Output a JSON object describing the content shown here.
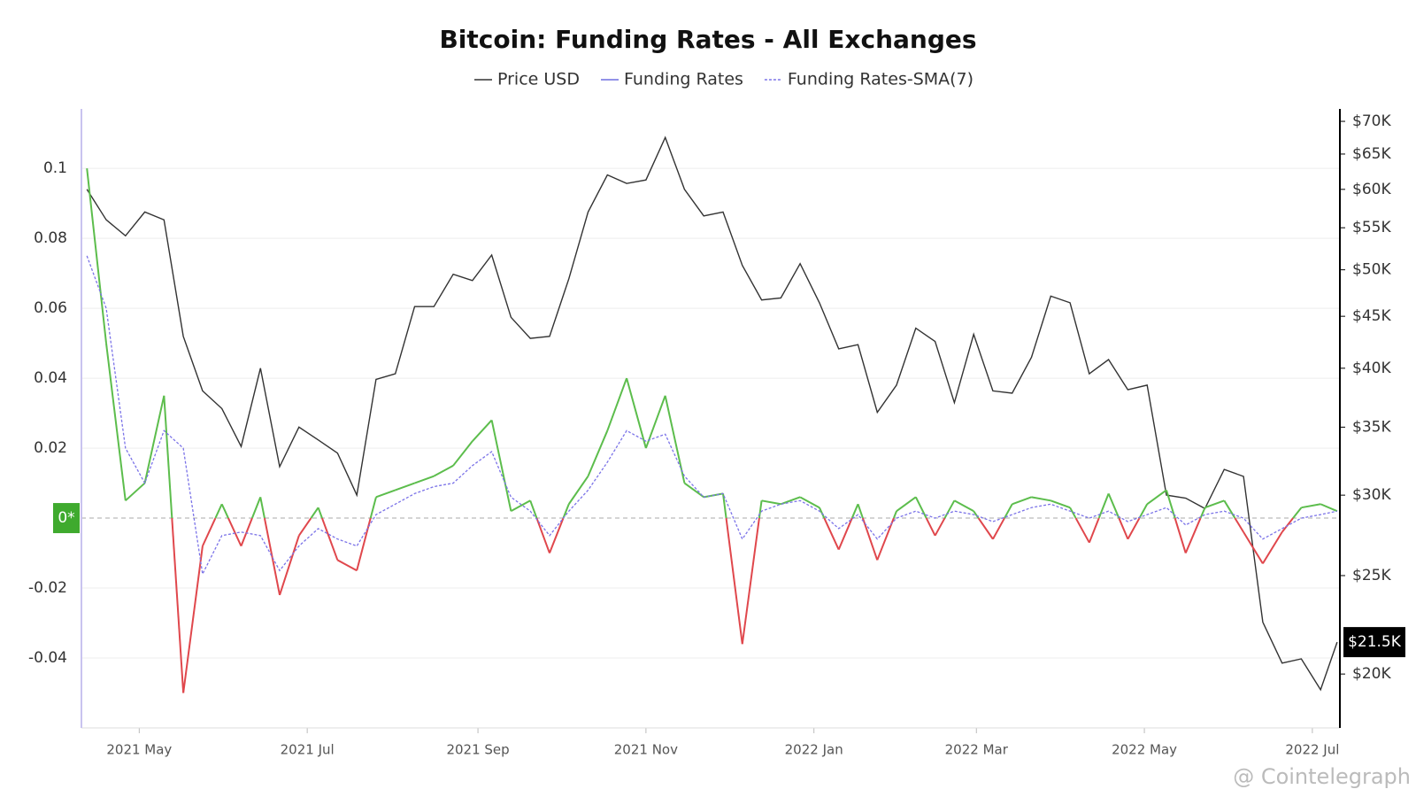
{
  "chart_data": {
    "type": "line",
    "title": "Bitcoin: Funding Rates - All Exchanges",
    "x": [
      "2021-04-12",
      "2021-04-19",
      "2021-04-26",
      "2021-05-03",
      "2021-05-10",
      "2021-05-17",
      "2021-05-24",
      "2021-05-31",
      "2021-06-07",
      "2021-06-14",
      "2021-06-21",
      "2021-06-28",
      "2021-07-05",
      "2021-07-12",
      "2021-07-19",
      "2021-07-26",
      "2021-08-02",
      "2021-08-09",
      "2021-08-16",
      "2021-08-23",
      "2021-08-30",
      "2021-09-06",
      "2021-09-13",
      "2021-09-20",
      "2021-09-27",
      "2021-10-04",
      "2021-10-11",
      "2021-10-18",
      "2021-10-25",
      "2021-11-01",
      "2021-11-08",
      "2021-11-15",
      "2021-11-22",
      "2021-11-29",
      "2021-12-06",
      "2021-12-13",
      "2021-12-20",
      "2021-12-27",
      "2022-01-03",
      "2022-01-10",
      "2022-01-17",
      "2022-01-24",
      "2022-01-31",
      "2022-02-07",
      "2022-02-14",
      "2022-02-21",
      "2022-02-28",
      "2022-03-07",
      "2022-03-14",
      "2022-03-21",
      "2022-03-28",
      "2022-04-04",
      "2022-04-11",
      "2022-04-18",
      "2022-04-25",
      "2022-05-02",
      "2022-05-09",
      "2022-05-16",
      "2022-05-23",
      "2022-05-30",
      "2022-06-06",
      "2022-06-13",
      "2022-06-20",
      "2022-06-27",
      "2022-07-04",
      "2022-07-10"
    ],
    "series": [
      {
        "name": "Price USD",
        "color": "#333333",
        "axis": "y2",
        "style": "solid",
        "values": [
          60000,
          56000,
          54000,
          57000,
          56000,
          43000,
          38000,
          36500,
          33500,
          40000,
          32000,
          35000,
          34000,
          33000,
          30000,
          39000,
          39500,
          46000,
          46000,
          49500,
          48800,
          51700,
          44900,
          42800,
          43000,
          49000,
          57000,
          62000,
          60800,
          61300,
          67500,
          60000,
          56500,
          57000,
          50500,
          46700,
          46900,
          50700,
          46400,
          41800,
          42200,
          36200,
          38500,
          43800,
          42500,
          37000,
          43200,
          38000,
          37800,
          41000,
          47100,
          46400,
          39500,
          40800,
          38100,
          38500,
          30000,
          29800,
          29100,
          31800,
          31300,
          22500,
          20500,
          20700,
          19300,
          21500
        ]
      },
      {
        "name": "Funding Rates",
        "color": "#6f6fe0",
        "positive_color": "#5cbd4c",
        "negative_color": "#e0474c",
        "style": "solid",
        "values": [
          0.1,
          0.05,
          0.005,
          0.01,
          0.035,
          -0.05,
          -0.008,
          0.004,
          -0.008,
          0.006,
          -0.022,
          -0.005,
          0.003,
          -0.012,
          -0.015,
          0.006,
          0.008,
          0.01,
          0.012,
          0.015,
          0.022,
          0.028,
          0.002,
          0.005,
          -0.01,
          0.004,
          0.012,
          0.025,
          0.04,
          0.02,
          0.035,
          0.01,
          0.006,
          0.007,
          -0.036,
          0.005,
          0.004,
          0.006,
          0.003,
          -0.009,
          0.004,
          -0.012,
          0.002,
          0.006,
          -0.005,
          0.005,
          0.002,
          -0.006,
          0.004,
          0.006,
          0.005,
          0.003,
          -0.007,
          0.007,
          -0.006,
          0.004,
          0.008,
          -0.01,
          0.003,
          0.005,
          -0.004,
          -0.013,
          -0.004,
          0.003,
          0.004,
          0.002
        ]
      },
      {
        "name": "Funding Rates-SMA(7)",
        "color": "#7b73e8",
        "style": "dashed",
        "values": [
          0.075,
          0.06,
          0.02,
          0.01,
          0.025,
          0.02,
          -0.016,
          -0.005,
          -0.004,
          -0.005,
          -0.015,
          -0.008,
          -0.003,
          -0.006,
          -0.008,
          0.001,
          0.004,
          0.007,
          0.009,
          0.01,
          0.015,
          0.019,
          0.006,
          0.002,
          -0.005,
          0.002,
          0.008,
          0.016,
          0.025,
          0.022,
          0.024,
          0.012,
          0.006,
          0.007,
          -0.006,
          0.002,
          0.004,
          0.005,
          0.002,
          -0.003,
          0.001,
          -0.006,
          0,
          0.002,
          0,
          0.002,
          0.001,
          -0.001,
          0.001,
          0.003,
          0.004,
          0.002,
          0,
          0.002,
          -0.001,
          0.001,
          0.003,
          -0.002,
          0.001,
          0.002,
          0,
          -0.006,
          -0.003,
          0,
          0.001,
          0.002
        ]
      }
    ],
    "xlim": [
      "2021-04-10",
      "2022-07-11"
    ],
    "xticks": [
      {
        "value": "2021-05-01",
        "label": "2021 May"
      },
      {
        "value": "2021-07-01",
        "label": "2021 Jul"
      },
      {
        "value": "2021-09-01",
        "label": "2021 Sep"
      },
      {
        "value": "2021-11-01",
        "label": "2021 Nov"
      },
      {
        "value": "2022-01-01",
        "label": "2022 Jan"
      },
      {
        "value": "2022-03-01",
        "label": "2022 Mar"
      },
      {
        "value": "2022-05-01",
        "label": "2022 May"
      },
      {
        "value": "2022-07-01",
        "label": "2022 Jul"
      }
    ],
    "ylim": [
      -0.06,
      0.117
    ],
    "yticks": [
      -0.04,
      -0.02,
      {
        "value": 0,
        "label": "0*"
      },
      0.02,
      0.04,
      0.06,
      0.08,
      0.1
    ],
    "y2lim": [
      17700,
      72000
    ],
    "y2_log": true,
    "y2ticks": [
      {
        "value": 20000,
        "label": "$20K"
      },
      {
        "value": 25000,
        "label": "$25K"
      },
      {
        "value": 30000,
        "label": "$30K"
      },
      {
        "value": 35000,
        "label": "$35K"
      },
      {
        "value": 40000,
        "label": "$40K"
      },
      {
        "value": 45000,
        "label": "$45K"
      },
      {
        "value": 50000,
        "label": "$50K"
      },
      {
        "value": 55000,
        "label": "$55K"
      },
      {
        "value": 60000,
        "label": "$60K"
      },
      {
        "value": 65000,
        "label": "$65K"
      },
      {
        "value": 70000,
        "label": "$70K"
      }
    ],
    "last_price_label": {
      "value": 21500,
      "label": "$21.5K"
    },
    "grid": true,
    "legend": "top",
    "watermark": "@ Cointelegraph"
  }
}
